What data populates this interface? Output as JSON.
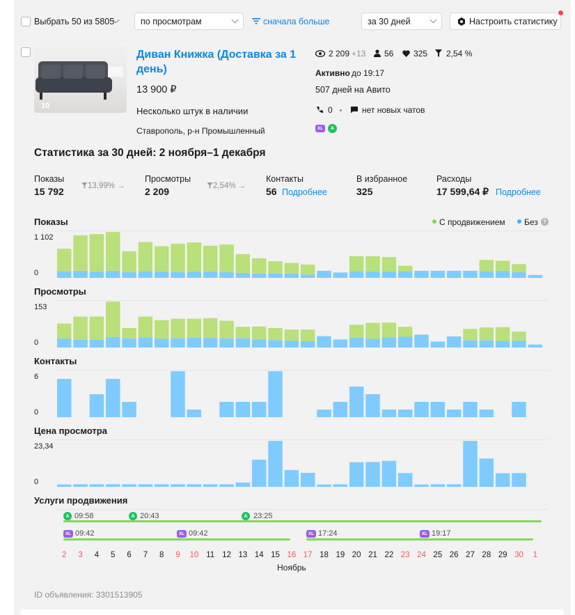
{
  "toolbar": {
    "select_label": "Выбрать 50 из 5805",
    "sort_value": "по просмотрам",
    "order_label": "сначала больше",
    "period_value": "за 30 дней",
    "configure_label": "Настроить статистику"
  },
  "listing": {
    "title": "Диван Книжка (Доставка за 1 день)",
    "price": "13 900 ₽",
    "stock": "Несколько штук в наличии",
    "location": "Ставрополь, р-н Промышленный",
    "photo_count": "10",
    "views": "2 209",
    "views_delta": "+13",
    "users": "56",
    "favorites": "325",
    "conversion": "2,54 %",
    "status_label": "Активно",
    "status_until": "до 19:17",
    "days_on": "507 дней на Авито",
    "calls": "0",
    "chats": "нет новых чатов",
    "promo_badges": [
      "XL",
      "A"
    ]
  },
  "stats": {
    "title": "Статистика за 30 дней: 2 ноября–1 декабря",
    "impressions_label": "Показы",
    "impressions_value": "15 792",
    "impressions_conv": "13,99%",
    "views_label": "Просмотры",
    "views_value": "2 209",
    "views_conv": "2,54%",
    "contacts_label": "Контакты",
    "contacts_value": "56",
    "contacts_more": "Подробнее",
    "fav_label": "В избранное",
    "fav_value": "325",
    "expenses_label": "Расходы",
    "expenses_value": "17 599,64 ₽",
    "expenses_more": "Подробнее"
  },
  "legend": {
    "promoted": "С продвижением",
    "without": "Без"
  },
  "colors": {
    "promoted": "#b9e07a",
    "organic": "#7fcbff",
    "weekend": "#f05a5a",
    "link": "#0a88e3"
  },
  "charts": [
    {
      "title": "Показы",
      "max_label": "1 102",
      "zero_label": "0"
    },
    {
      "title": "Просмотры",
      "max_label": "153",
      "zero_label": "0"
    },
    {
      "title": "Контакты",
      "max_label": "6",
      "zero_label": "0"
    },
    {
      "title": "Цена просмотра",
      "max_label": "23,34",
      "zero_label": "0"
    }
  ],
  "chart_data": [
    {
      "type": "bar",
      "title": "Показы",
      "categories": [
        "2",
        "3",
        "4",
        "5",
        "6",
        "7",
        "8",
        "9",
        "10",
        "11",
        "12",
        "13",
        "14",
        "15",
        "16",
        "17",
        "18",
        "19",
        "20",
        "21",
        "22",
        "23",
        "24",
        "25",
        "26",
        "27",
        "28",
        "29",
        "30",
        "1"
      ],
      "ylim": [
        0,
        1102
      ],
      "series": [
        {
          "name": "Без",
          "values": [
            160,
            170,
            150,
            170,
            140,
            160,
            150,
            140,
            150,
            150,
            140,
            120,
            100,
            110,
            100,
            80,
            170,
            130,
            160,
            150,
            150,
            160,
            170,
            170,
            170,
            170,
            160,
            170,
            140,
            70
          ]
        },
        {
          "name": "С продвижением",
          "values": [
            540,
            850,
            900,
            930,
            500,
            700,
            610,
            680,
            700,
            620,
            660,
            450,
            370,
            290,
            260,
            240,
            0,
            0,
            360,
            370,
            350,
            130,
            0,
            0,
            0,
            0,
            270,
            240,
            190,
            0
          ]
        }
      ]
    },
    {
      "type": "bar",
      "title": "Просмотры",
      "categories": [
        "2",
        "3",
        "4",
        "5",
        "6",
        "7",
        "8",
        "9",
        "10",
        "11",
        "12",
        "13",
        "14",
        "15",
        "16",
        "17",
        "18",
        "19",
        "20",
        "21",
        "22",
        "23",
        "24",
        "25",
        "26",
        "27",
        "28",
        "29",
        "30",
        "1"
      ],
      "ylim": [
        0,
        153
      ],
      "series": [
        {
          "name": "Без",
          "values": [
            30,
            26,
            26,
            35,
            30,
            34,
            29,
            31,
            33,
            32,
            30,
            31,
            27,
            25,
            23,
            21,
            38,
            27,
            33,
            29,
            34,
            36,
            43,
            20,
            37,
            24,
            24,
            22,
            23,
            10
          ]
        },
        {
          "name": "С продвижением",
          "values": [
            50,
            77,
            77,
            118,
            35,
            69,
            62,
            65,
            63,
            66,
            59,
            38,
            43,
            40,
            37,
            39,
            0,
            0,
            43,
            53,
            49,
            33,
            0,
            0,
            0,
            38,
            43,
            46,
            30,
            0
          ]
        }
      ]
    },
    {
      "type": "bar",
      "title": "Контакты",
      "categories": [
        "2",
        "3",
        "4",
        "5",
        "6",
        "7",
        "8",
        "9",
        "10",
        "11",
        "12",
        "13",
        "14",
        "15",
        "16",
        "17",
        "18",
        "19",
        "20",
        "21",
        "22",
        "23",
        "24",
        "25",
        "26",
        "27",
        "28",
        "29",
        "30",
        "1"
      ],
      "ylim": [
        0,
        6
      ],
      "values": [
        5,
        0,
        3,
        5,
        2,
        0,
        0,
        6,
        1,
        0,
        2,
        2,
        2,
        6,
        0,
        0,
        1,
        2,
        4,
        3,
        1,
        1,
        2,
        2,
        1,
        2,
        1,
        0,
        2,
        0
      ]
    },
    {
      "type": "bar",
      "title": "Цена просмотра",
      "categories": [
        "2",
        "3",
        "4",
        "5",
        "6",
        "7",
        "8",
        "9",
        "10",
        "11",
        "12",
        "13",
        "14",
        "15",
        "16",
        "17",
        "18",
        "19",
        "20",
        "21",
        "22",
        "23",
        "24",
        "25",
        "26",
        "27",
        "28",
        "29",
        "30",
        "1"
      ],
      "ylim": [
        0,
        23.34
      ],
      "values": [
        1.2,
        1.3,
        1.3,
        1.3,
        1.3,
        1.3,
        1.3,
        1.3,
        1.3,
        1.3,
        1.3,
        2.2,
        13.8,
        23.3,
        8.5,
        7.1,
        1.2,
        1.3,
        12.5,
        12.6,
        13.2,
        7.0,
        1.2,
        1.3,
        1.3,
        23.3,
        14.4,
        6.9,
        7.0,
        0
      ]
    }
  ],
  "services": {
    "title": "Услуги продвижения",
    "row1": [
      {
        "badge": "A",
        "time": "09:58"
      },
      {
        "badge": "A",
        "time": "20:43"
      },
      {
        "badge": "A",
        "time": "23:25"
      }
    ],
    "row2": [
      {
        "badge": "XL",
        "time": "09:42"
      },
      {
        "badge": "XL",
        "time": "09:42"
      },
      {
        "badge": "XL",
        "time": "17:24"
      },
      {
        "badge": "XL",
        "time": "19:17"
      }
    ]
  },
  "axis": {
    "dates": [
      "2",
      "3",
      "4",
      "5",
      "6",
      "7",
      "8",
      "9",
      "10",
      "11",
      "12",
      "13",
      "14",
      "15",
      "16",
      "17",
      "18",
      "19",
      "20",
      "21",
      "22",
      "23",
      "24",
      "25",
      "26",
      "27",
      "28",
      "29",
      "30",
      "1"
    ],
    "weekend": [
      true,
      true,
      false,
      false,
      false,
      false,
      false,
      true,
      true,
      false,
      false,
      false,
      false,
      false,
      true,
      true,
      false,
      false,
      false,
      false,
      false,
      true,
      true,
      false,
      false,
      false,
      false,
      false,
      true,
      true
    ],
    "month": "Ноябрь"
  },
  "footer": {
    "id_label": "ID объявления: 3301513905"
  }
}
